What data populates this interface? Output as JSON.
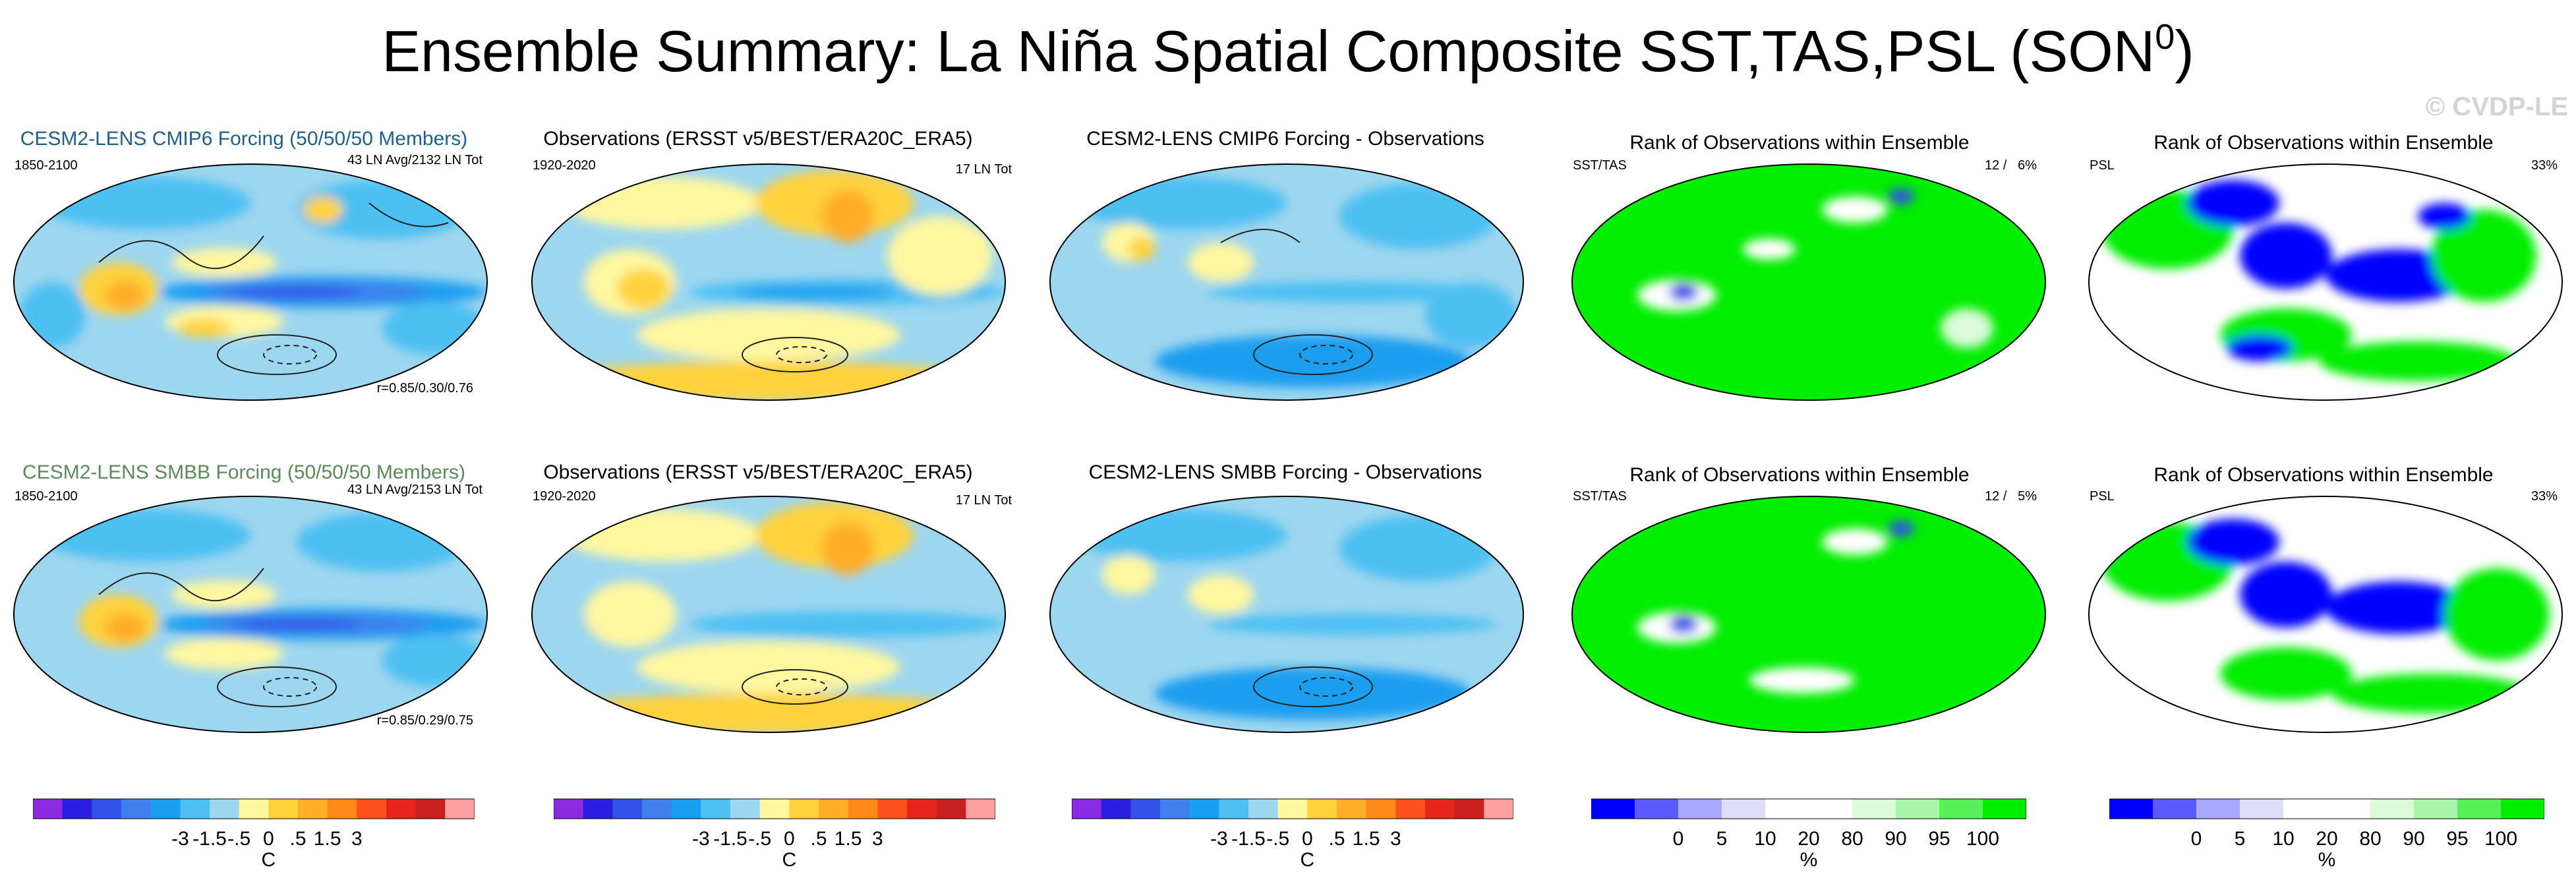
{
  "title": {
    "text": "Ensemble Summary: La Niña Spatial Composite SST,TAS,PSL (SON",
    "sup": "0",
    "close": ")"
  },
  "watermark": "© CVDP-LE",
  "panels": {
    "r0c0": {
      "title": "CESM2-LENS CMIP6 Forcing (50/50/50 Members)",
      "title_color": "#1f5f8b",
      "left": "1850-2100",
      "right": "43 LN Avg/2132 LN Tot",
      "corner": "r=0.85/0.30/0.76"
    },
    "r0c1": {
      "title": "Observations (ERSST v5/BEST/ERA20C_ERA5)",
      "left": "1920-2020",
      "right": "17 LN Tot"
    },
    "r0c2": {
      "title": "CESM2-LENS CMIP6 Forcing - Observations"
    },
    "r0c3": {
      "title": "Rank of Observations within Ensemble",
      "left": "SST/TAS",
      "right": "12 /   6%"
    },
    "r0c4": {
      "title": "Rank of Observations within Ensemble",
      "left": "PSL",
      "right": "33%"
    },
    "r1c0": {
      "title": "CESM2-LENS SMBB Forcing (50/50/50 Members)",
      "title_color": "#5a8a5a",
      "left": "1850-2100",
      "right": "43 LN Avg/2153 LN Tot",
      "corner": "r=0.85/0.29/0.75"
    },
    "r1c1": {
      "title": "Observations (ERSST v5/BEST/ERA20C_ERA5)",
      "left": "1920-2020",
      "right": "17 LN Tot"
    },
    "r1c2": {
      "title": "CESM2-LENS SMBB Forcing - Observations"
    },
    "r1c3": {
      "title": "Rank of Observations within Ensemble",
      "left": "SST/TAS",
      "right": "12 /   5%"
    },
    "r1c4": {
      "title": "Rank of Observations within Ensemble",
      "left": "PSL",
      "right": "33%"
    }
  },
  "colorbars": {
    "temp": {
      "colors": [
        "#8a2be2",
        "#2a1fe0",
        "#3352e8",
        "#3f7fee",
        "#1a9ef0",
        "#4ec0f2",
        "#9dd6ef",
        "#fff7a0",
        "#ffd23c",
        "#ffae2a",
        "#ff8a1a",
        "#ff5020",
        "#e6241c",
        "#c8201e",
        "#ffa0a0"
      ],
      "tick_labels": [
        "-3",
        "-1.5",
        "-.5",
        "0",
        ".5",
        "1.5",
        "3"
      ],
      "unit": "C"
    },
    "rank": {
      "colors": [
        "#0000ff",
        "#5a5aff",
        "#a8a8ff",
        "#dedefa",
        "#ffffff",
        "#ffffff",
        "#dbfbdb",
        "#a9f5a9",
        "#59ef59",
        "#00ee00"
      ],
      "tick_labels": [
        "0",
        "5",
        "10",
        "20",
        "80",
        "90",
        "95",
        "100"
      ],
      "unit": "%"
    }
  },
  "chart_data": [
    {
      "type": "heatmap",
      "title": "CESM2-LENS CMIP6 Forcing (50/50/50 Members)",
      "variables": [
        "SST",
        "TAS",
        "PSL"
      ],
      "units": "C",
      "period": "1850-2100",
      "stats": "43 LN Avg/2132 LN Tot",
      "pattern_correlation": [
        0.85,
        0.3,
        0.76
      ]
    },
    {
      "type": "heatmap",
      "title": "Observations (ERSST v5/BEST/ERA20C_ERA5)",
      "variables": [
        "SST",
        "TAS",
        "PSL"
      ],
      "units": "C",
      "period": "1920-2020",
      "stats": "17 LN Tot"
    },
    {
      "type": "heatmap",
      "title": "CESM2-LENS CMIP6 Forcing - Observations",
      "variables": [
        "SST",
        "TAS",
        "PSL"
      ],
      "units": "C"
    },
    {
      "type": "heatmap",
      "title": "Rank of Observations within Ensemble",
      "variables": [
        "SST/TAS"
      ],
      "units": "%",
      "count": 12,
      "percent": 6
    },
    {
      "type": "heatmap",
      "title": "Rank of Observations within Ensemble",
      "variables": [
        "PSL"
      ],
      "units": "%",
      "percent": 33
    },
    {
      "type": "heatmap",
      "title": "CESM2-LENS SMBB Forcing (50/50/50 Members)",
      "variables": [
        "SST",
        "TAS",
        "PSL"
      ],
      "units": "C",
      "period": "1850-2100",
      "stats": "43 LN Avg/2153 LN Tot",
      "pattern_correlation": [
        0.85,
        0.29,
        0.75
      ]
    },
    {
      "type": "heatmap",
      "title": "Observations (ERSST v5/BEST/ERA20C_ERA5)",
      "variables": [
        "SST",
        "TAS",
        "PSL"
      ],
      "units": "C",
      "period": "1920-2020",
      "stats": "17 LN Tot"
    },
    {
      "type": "heatmap",
      "title": "CESM2-LENS SMBB Forcing - Observations",
      "variables": [
        "SST",
        "TAS",
        "PSL"
      ],
      "units": "C"
    },
    {
      "type": "heatmap",
      "title": "Rank of Observations within Ensemble",
      "variables": [
        "SST/TAS"
      ],
      "units": "%",
      "count": 12,
      "percent": 5
    },
    {
      "type": "heatmap",
      "title": "Rank of Observations within Ensemble",
      "variables": [
        "PSL"
      ],
      "units": "%",
      "percent": 33
    }
  ]
}
